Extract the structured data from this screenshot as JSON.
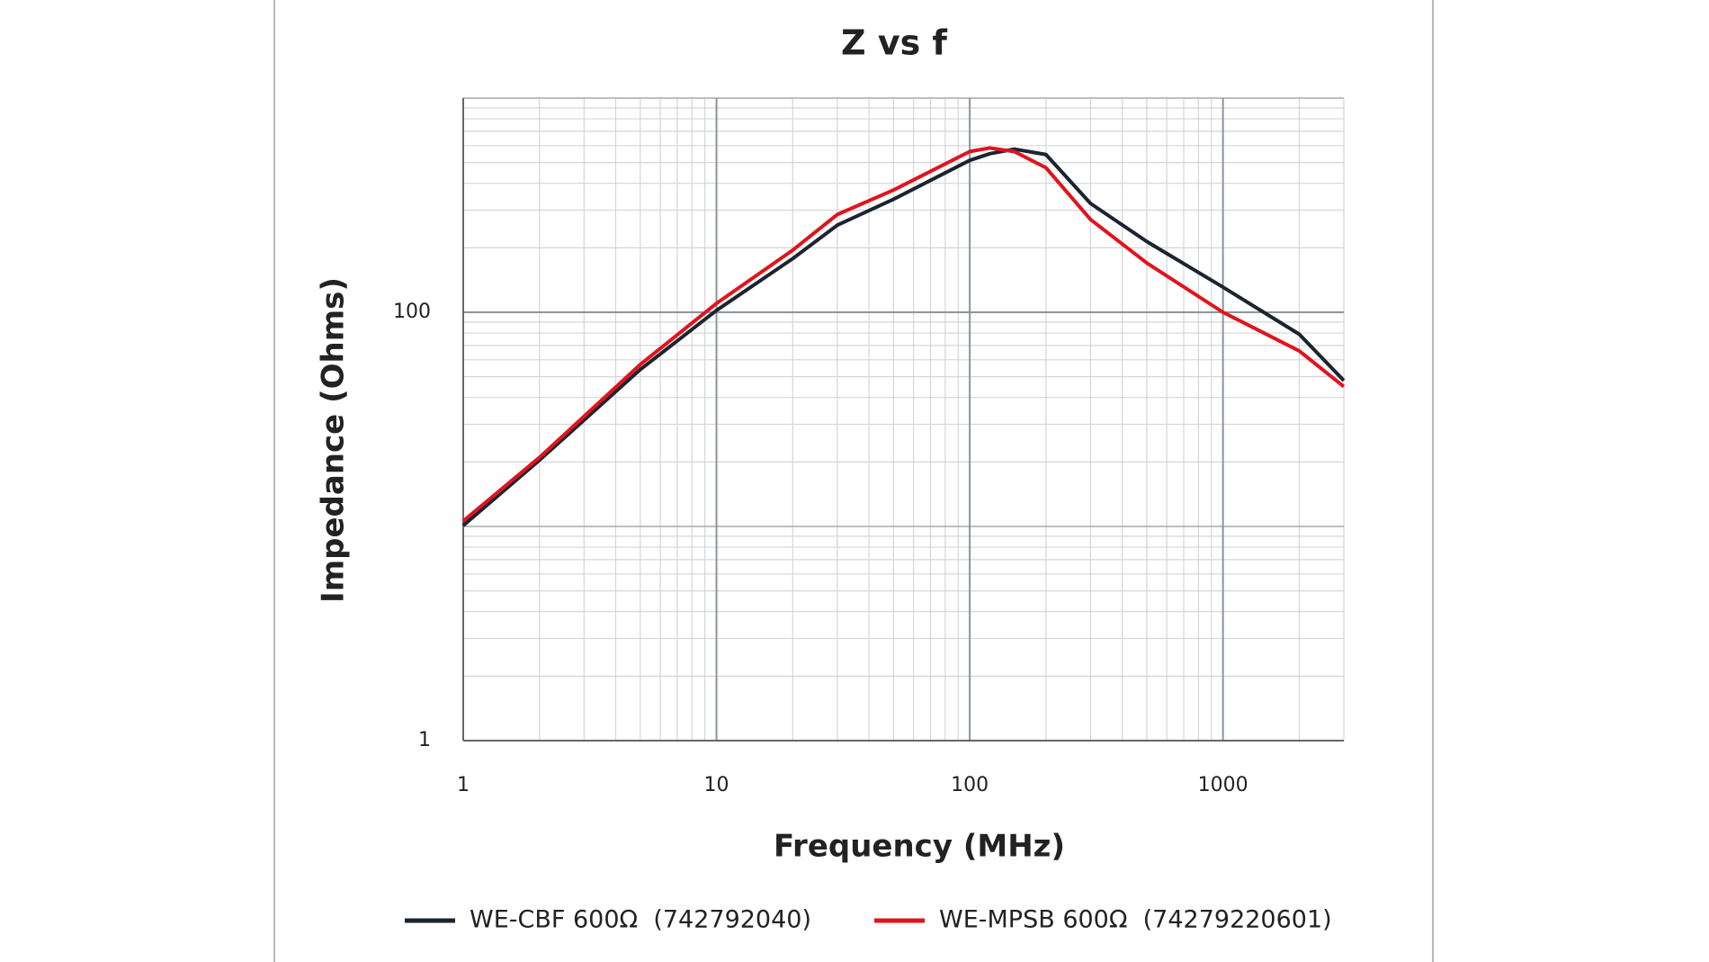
{
  "chart_data": {
    "type": "line",
    "title": "Z vs f",
    "x_label": "Frequency (MHz)",
    "y_label": "Impedance (Ohms)",
    "x": [
      1,
      2,
      5,
      10,
      20,
      30,
      50,
      100,
      120,
      150,
      200,
      300,
      500,
      1000,
      2000,
      3000
    ],
    "series": [
      {
        "name": "WE-CBF 600Ω  (742792040)",
        "color": "#1c2430",
        "values": [
          10.1,
          20.4,
          54,
          102,
          178,
          255,
          337,
          512,
          550,
          578,
          545,
          322,
          214,
          131,
          79,
          48
        ]
      },
      {
        "name": "WE-MPSB 600Ω  (74279220601)",
        "color": "#e0141e",
        "values": [
          10.6,
          21,
          57,
          110,
          195,
          286,
          372,
          563,
          585,
          563,
          473,
          271,
          170,
          100,
          66,
          45
        ]
      }
    ],
    "xlim": [
      1,
      3000
    ],
    "ylim": [
      1,
      1000
    ],
    "xticks": [
      1,
      10,
      100,
      1000
    ],
    "yticks": [
      1,
      100
    ],
    "xscale": "log",
    "yscale": "log",
    "grid": true,
    "legend": "bottom"
  }
}
